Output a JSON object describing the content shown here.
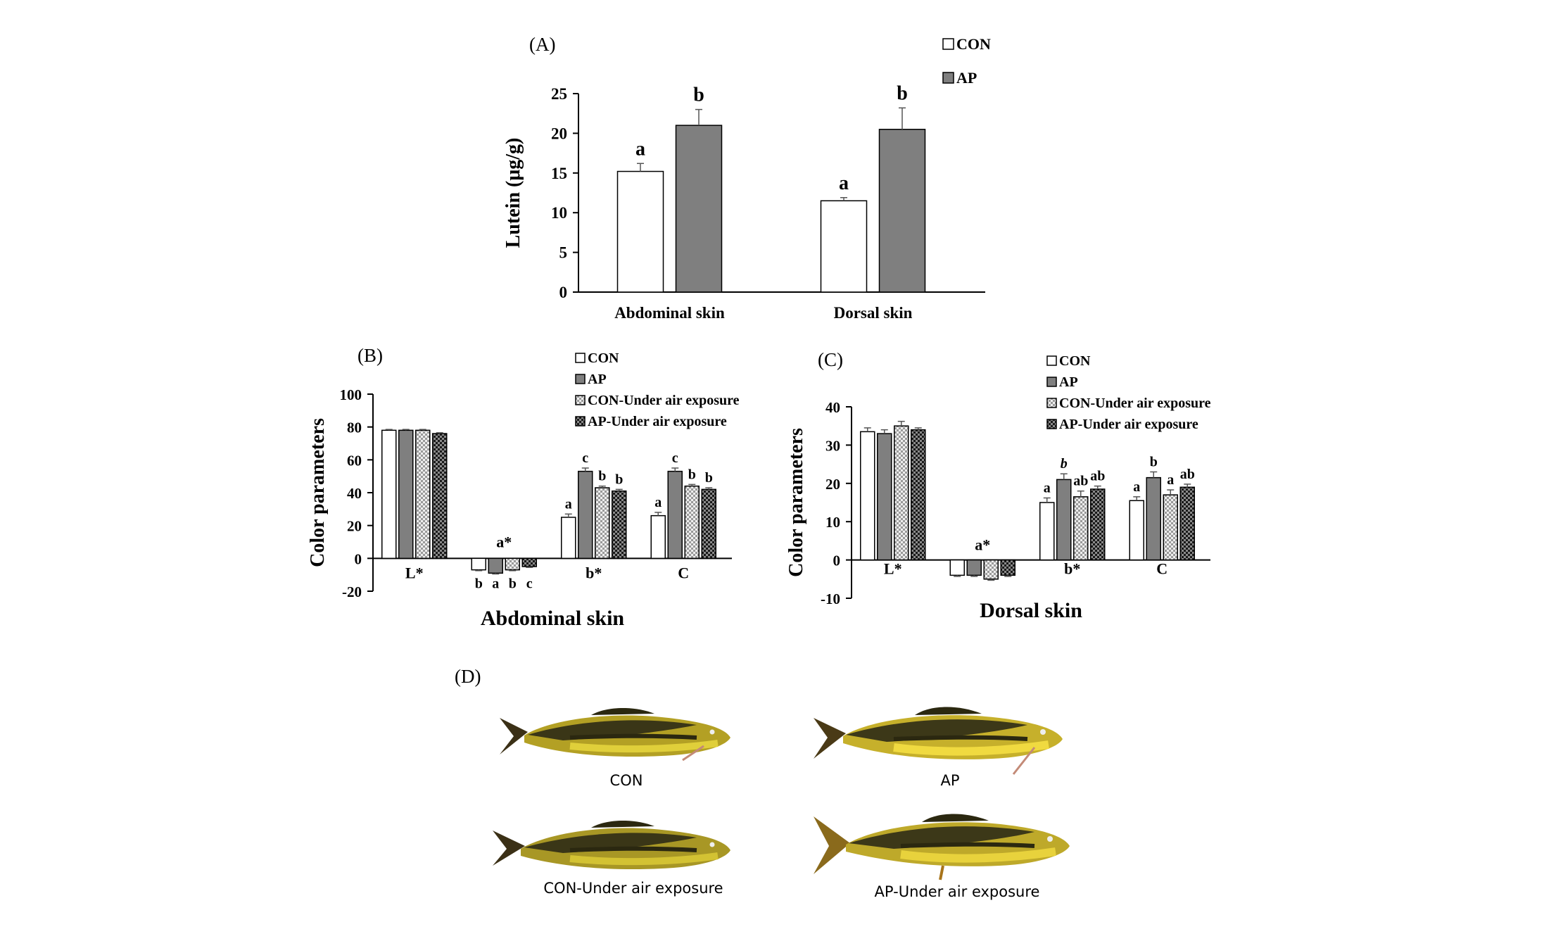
{
  "panels": {
    "a": "(A)",
    "b": "(B)",
    "c": "(C)",
    "d": "(D)"
  },
  "colors": {
    "con": "#ffffff",
    "ap": "#7f7f7f",
    "con_air": "#d9d9d9",
    "ap_air": "#262626",
    "axis": "#000000"
  },
  "chart_data": [
    {
      "type": "bar",
      "panel": "A",
      "ylabel": "Lutein (μg/g)",
      "xlabel": "",
      "ylim": [
        0,
        25
      ],
      "yticks": [
        0,
        5,
        10,
        15,
        20,
        25
      ],
      "categories": [
        "Abdominal skin",
        "Dorsal skin"
      ],
      "legend": [
        "CON",
        "AP"
      ],
      "legend_position": "top-right",
      "series": [
        {
          "name": "CON",
          "values": [
            15.2,
            11.5
          ],
          "errors": [
            1.0,
            0.4
          ],
          "letters": [
            "a",
            "a"
          ]
        },
        {
          "name": "AP",
          "values": [
            21.0,
            20.5
          ],
          "errors": [
            2.0,
            2.7
          ],
          "letters": [
            "b",
            "b"
          ]
        }
      ]
    },
    {
      "type": "bar",
      "panel": "B",
      "ylabel": "Color parameters",
      "xlabel": "Abdominal skin",
      "ylim": [
        -20,
        100
      ],
      "yticks": [
        -20,
        0,
        20,
        40,
        60,
        80,
        100
      ],
      "categories": [
        "L*",
        "a*",
        "b*",
        "C"
      ],
      "legend": [
        "CON",
        "AP",
        "CON-Under air exposure",
        "AP-Under air exposure"
      ],
      "legend_position": "top-right",
      "series": [
        {
          "name": "CON",
          "values": [
            78,
            -7,
            25,
            26
          ],
          "errors": [
            0.5,
            0.5,
            2,
            2
          ],
          "letters": [
            "",
            "b",
            "a",
            "a"
          ]
        },
        {
          "name": "AP",
          "values": [
            78,
            -9,
            53,
            53
          ],
          "errors": [
            0.5,
            0.5,
            2,
            2
          ],
          "letters": [
            "",
            "a",
            "c",
            "c"
          ]
        },
        {
          "name": "CON-Under air exposure",
          "values": [
            78,
            -7,
            43,
            44
          ],
          "errors": [
            0.5,
            0.5,
            1,
            1
          ],
          "letters": [
            "",
            "b",
            "b",
            "b"
          ]
        },
        {
          "name": "AP-Under air exposure",
          "values": [
            76,
            -5,
            41,
            42
          ],
          "errors": [
            0.5,
            0.5,
            1,
            1
          ],
          "letters": [
            "",
            "c",
            "b",
            "b"
          ]
        }
      ]
    },
    {
      "type": "bar",
      "panel": "C",
      "ylabel": "Color parameters",
      "xlabel": "Dorsal skin",
      "ylim": [
        -10,
        40
      ],
      "yticks": [
        -10,
        0,
        10,
        20,
        30,
        40
      ],
      "categories": [
        "L*",
        "a*",
        "b*",
        "C"
      ],
      "legend": [
        "CON",
        "AP",
        "CON-Under air exposure",
        "AP-Under air exposure"
      ],
      "legend_position": "top-right",
      "series": [
        {
          "name": "CON",
          "values": [
            33.5,
            -4,
            15,
            15.5
          ],
          "errors": [
            1,
            0.3,
            1.2,
            1
          ],
          "letters": [
            "",
            "",
            "a",
            "a"
          ]
        },
        {
          "name": "AP",
          "values": [
            33,
            -4,
            21,
            21.5
          ],
          "errors": [
            1,
            0.3,
            1.5,
            1.5
          ],
          "letters": [
            "",
            "",
            "b",
            "b"
          ]
        },
        {
          "name": "CON-Under air exposure",
          "values": [
            35,
            -5,
            16.5,
            17
          ],
          "errors": [
            1.2,
            0.3,
            1.5,
            1.3
          ],
          "letters": [
            "",
            "",
            "ab",
            "a"
          ]
        },
        {
          "name": "AP-Under air exposure",
          "values": [
            34,
            -4,
            18.5,
            19
          ],
          "errors": [
            0.5,
            0.3,
            0.8,
            0.8
          ],
          "letters": [
            "",
            "",
            "ab",
            "ab"
          ]
        }
      ]
    }
  ],
  "chart_letter_a_star": "a*",
  "photos": {
    "captions": [
      "CON",
      "AP",
      "CON-Under air exposure",
      "AP-Under air exposure"
    ]
  }
}
